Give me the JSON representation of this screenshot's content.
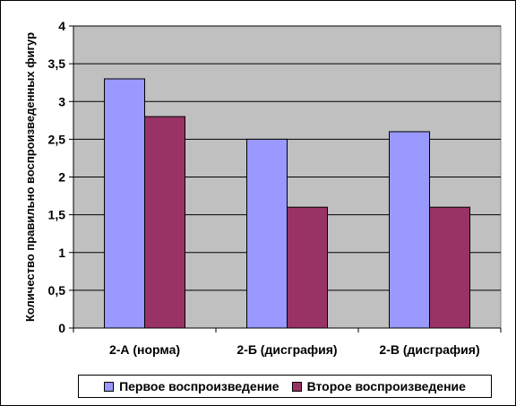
{
  "chart_data": {
    "type": "bar",
    "categories": [
      "2-А (норма)",
      "2-Б (дисграфия)",
      "2-В (дисграфия)"
    ],
    "series": [
      {
        "name": "Первое воспроизведение",
        "values": [
          3.3,
          2.5,
          2.6
        ],
        "color": "#9999ff"
      },
      {
        "name": "Второе воспроизведение",
        "values": [
          2.8,
          1.6,
          1.6
        ],
        "color": "#993366"
      }
    ],
    "ylabel": "Количество правильно воспроизведенных фигур",
    "ylim": [
      0,
      4
    ],
    "yticks": [
      "0",
      "0,5",
      "1",
      "1,5",
      "2",
      "2,5",
      "3",
      "3,5",
      "4"
    ],
    "grid": true,
    "plot_background": "#c0c0c0",
    "legend_position": "bottom"
  }
}
